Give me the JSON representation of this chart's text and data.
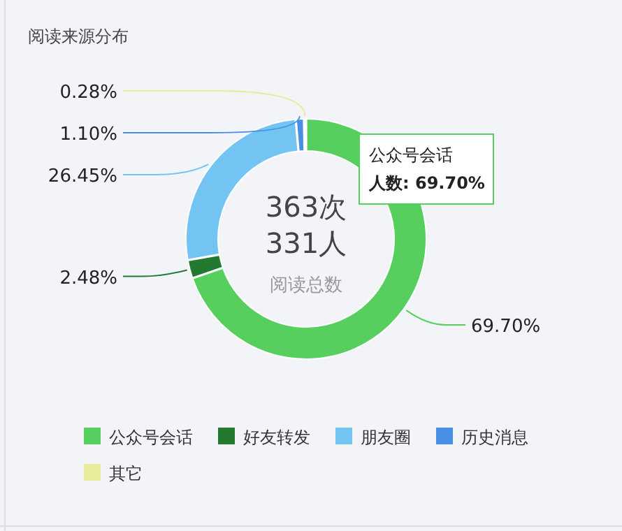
{
  "chart_data": {
    "type": "donut",
    "title": "阅读来源分布",
    "categories": [
      "公众号会话",
      "好友转发",
      "朋友圈",
      "历史消息",
      "其它"
    ],
    "values": [
      69.7,
      2.48,
      26.45,
      1.1,
      0.28
    ],
    "colors": [
      "#56cf5f",
      "#23792f",
      "#73c4f2",
      "#4a8fe6",
      "#e8eb9a"
    ],
    "value_labels": [
      "69.70%",
      "2.48%",
      "26.45%",
      "1.10%",
      "0.28%"
    ],
    "annotations": [
      "363次",
      "331人",
      "阅读总数",
      "公众号会话",
      "人数: 69.70%"
    ],
    "legend": "bottom"
  }
}
